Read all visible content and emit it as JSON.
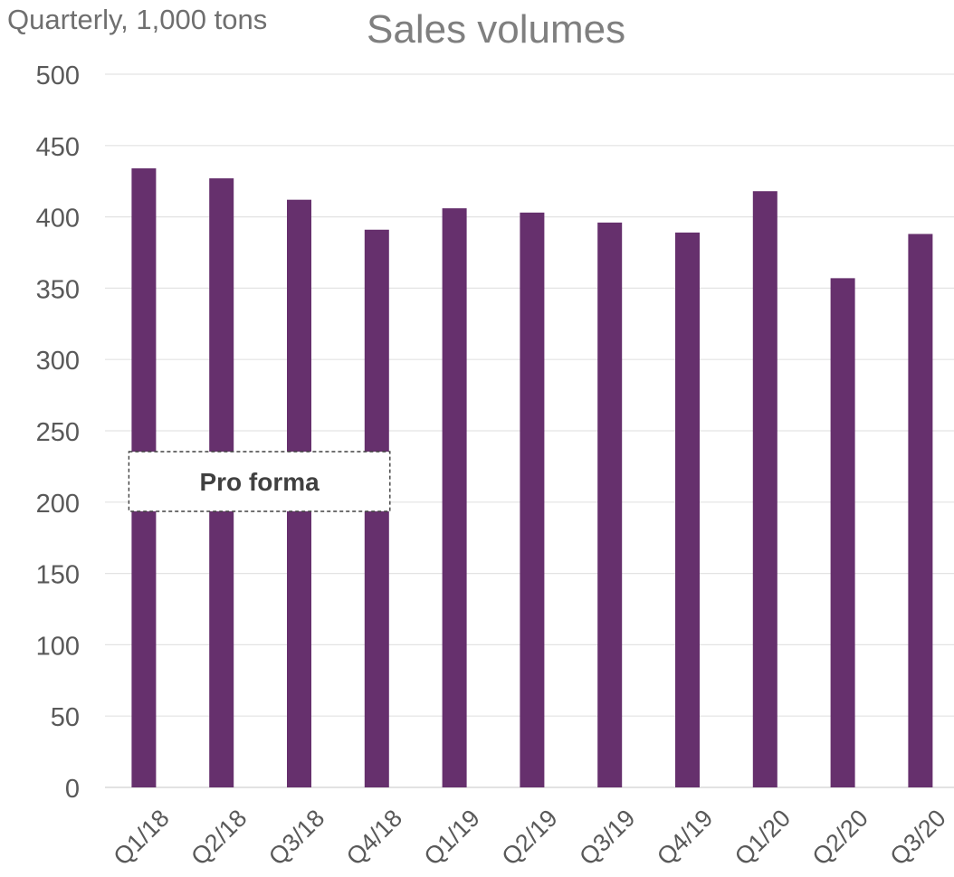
{
  "chart_data": {
    "type": "bar",
    "title": "Sales volumes",
    "ylabel": "Quarterly, 1,000 tons",
    "xlabel": "",
    "categories": [
      "Q1/18",
      "Q2/18",
      "Q3/18",
      "Q4/18",
      "Q1/19",
      "Q2/19",
      "Q3/19",
      "Q4/19",
      "Q1/20",
      "Q2/20",
      "Q3/20"
    ],
    "values": [
      434,
      427,
      412,
      391,
      406,
      403,
      396,
      389,
      418,
      357,
      388
    ],
    "ylim": [
      0,
      500
    ],
    "yticks": [
      0,
      50,
      100,
      150,
      200,
      250,
      300,
      350,
      400,
      450,
      500
    ],
    "grid": true,
    "bar_color": "#66306d",
    "annotation": {
      "text": "Pro forma",
      "covers_categories": [
        "Q1/18",
        "Q2/18",
        "Q3/18",
        "Q4/18"
      ]
    }
  }
}
